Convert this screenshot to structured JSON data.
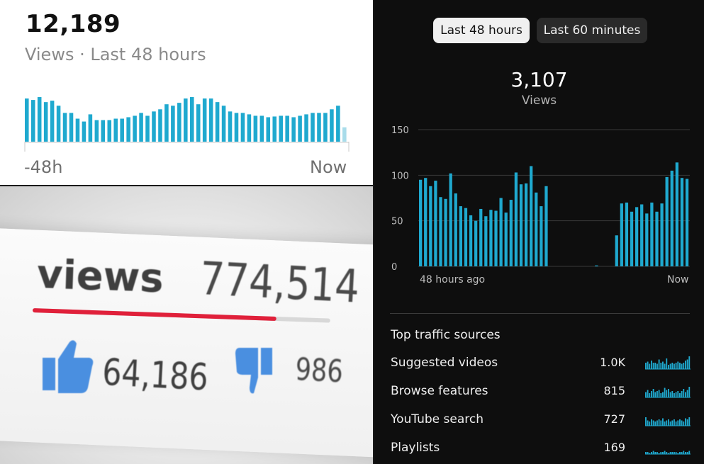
{
  "top_left": {
    "total": "12,189",
    "subtitle": "Views · Last 48 hours",
    "x_start_label": "-48h",
    "x_end_label": "Now",
    "bar_color": "#1fa9cf",
    "current_bar_color": "#a8dcea",
    "chart_data": {
      "type": "bar",
      "series": [
        {
          "values": [
            60,
            58,
            62,
            55,
            57,
            50,
            40,
            40,
            32,
            28,
            38,
            30,
            30,
            30,
            32,
            32,
            34,
            36,
            40,
            36,
            42,
            45,
            52,
            50,
            54,
            60,
            62,
            52,
            60,
            60,
            55,
            50,
            42,
            40,
            40,
            38,
            36,
            36,
            34,
            35,
            36,
            36,
            34,
            36,
            38,
            40,
            40,
            40,
            45,
            50,
            20
          ]
        }
      ]
    }
  },
  "bottom_left": {
    "views_label": "views",
    "views_count": "774,514",
    "likes_count": "64,186",
    "dislikes_count": "986",
    "like_ratio": 0.82,
    "thumb_color": "#4a8fe0",
    "ratio_color": "#e0203a"
  },
  "right_panel": {
    "tabs": [
      {
        "label": "Last 48 hours",
        "active": true
      },
      {
        "label": "Last 60 minutes",
        "active": false
      }
    ],
    "total": "3,107",
    "total_label": "Views",
    "x_start_label": "48 hours ago",
    "x_end_label": "Now",
    "bar_color": "#1fa9cf",
    "chart_data": {
      "type": "bar",
      "y_ticks": [
        "150",
        "100",
        "50",
        "0"
      ],
      "ylim": [
        0,
        150
      ],
      "series": [
        {
          "values": [
            95,
            97,
            88,
            94,
            76,
            74,
            102,
            80,
            66,
            64,
            56,
            50,
            63,
            55,
            62,
            61,
            75,
            59,
            73,
            103,
            90,
            91,
            110,
            81,
            66,
            88,
            0,
            0,
            0,
            0,
            0,
            0,
            0,
            0,
            0,
            1,
            0,
            0,
            0,
            34,
            69,
            70,
            60,
            65,
            68,
            58,
            70,
            60,
            69,
            98,
            105,
            114,
            97,
            96
          ]
        }
      ]
    },
    "traffic_title": "Top traffic sources",
    "sources": [
      {
        "name": "Suggested videos",
        "value": "1.0K",
        "spark": [
          6,
          7,
          5,
          8,
          6,
          6,
          5,
          9,
          6,
          7,
          5,
          10,
          4,
          5,
          6,
          5,
          6,
          7,
          6,
          5,
          6,
          8,
          9,
          12
        ]
      },
      {
        "name": "Browse features",
        "value": "815",
        "spark": [
          5,
          7,
          4,
          6,
          8,
          5,
          6,
          7,
          4,
          5,
          9,
          7,
          8,
          5,
          6,
          4,
          5,
          6,
          4,
          6,
          8,
          5,
          7,
          10
        ]
      },
      {
        "name": "YouTube search",
        "value": "727",
        "spark": [
          8,
          5,
          4,
          6,
          5,
          4,
          5,
          6,
          5,
          7,
          4,
          5,
          6,
          4,
          5,
          6,
          4,
          5,
          6,
          5,
          4,
          7,
          6,
          8
        ]
      },
      {
        "name": "Playlists",
        "value": "169",
        "spark": [
          2,
          2,
          1,
          2,
          3,
          2,
          2,
          1,
          2,
          2,
          3,
          2,
          1,
          2,
          2,
          2,
          2,
          1,
          2,
          2,
          3,
          2,
          2,
          3
        ]
      }
    ]
  }
}
